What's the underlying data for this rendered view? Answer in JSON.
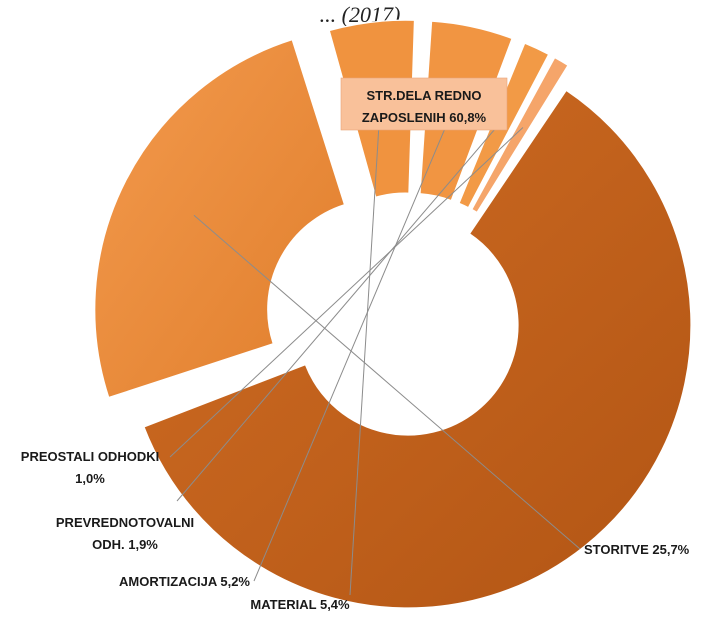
{
  "chart_data": {
    "type": "pie",
    "variant": "exploded-donut",
    "title": "... (2017)",
    "categories": [
      "STR.DELA REDNO ZAPOSLENIH",
      "STORITVE",
      "MATERIAL",
      "AMORTIZACIJA",
      "PREVREDNOTOVALNI ODH.",
      "PREOSTALI ODHODKI"
    ],
    "values": [
      60.8,
      25.7,
      5.4,
      5.2,
      1.9,
      1.0
    ],
    "labels": [
      [
        "STR.DELA REDNO",
        "ZAPOSLENIH 60,8%"
      ],
      [
        "STORITVE 25,7%"
      ],
      [
        "MATERIAL 5,4%"
      ],
      [
        "AMORTIZACIJA 5,2%"
      ],
      [
        "PREVREDNOTOVALNI",
        "ODH. 1,9%"
      ],
      [
        "PREOSTALI ODHODKI",
        "1,0%"
      ]
    ],
    "colors": [
      "#c4611b",
      "#ea8a3a",
      "#f0933f",
      "#f19542",
      "#f29a46",
      "#f5a56a"
    ],
    "legend": "none"
  }
}
